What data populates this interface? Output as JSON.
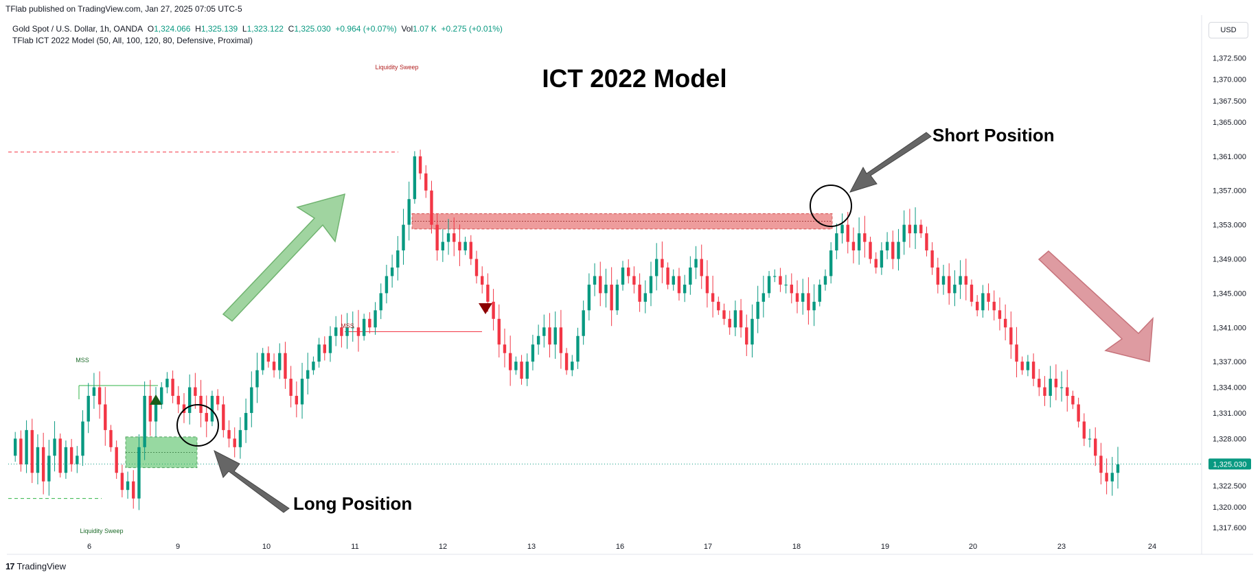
{
  "header": {
    "published": "TFlab published on TradingView.com, Jan 27, 2025 07:05 UTC-5"
  },
  "legend": {
    "symbol": "Gold Spot / U.S. Dollar, 1h, OANDA",
    "o_label": "O",
    "o_value": "1,324.066",
    "h_label": "H",
    "h_value": "1,325.139",
    "l_label": "L",
    "l_value": "1,323.122",
    "c_label": "C",
    "c_value": "1,325.030",
    "change": "+0.964 (+0.07%)",
    "vol_label": "Vol",
    "vol_value": "1.07 K",
    "vol_change": "+0.275 (+0.01%)",
    "indicator": "TFlab ICT 2022 Model (50, All, 100, 120, 80, Defensive, Proximal)"
  },
  "currency": "USD",
  "footer": {
    "brand": "TradingView",
    "logo": "17"
  },
  "colors": {
    "up": "#089981",
    "down": "#f23645",
    "bull_zone": "#2fb344",
    "bear_zone": "#e04a4a"
  },
  "chart_data": {
    "type": "candlestick",
    "title": "ICT 2022 Model",
    "x_ticks": [
      "6",
      "9",
      "10",
      "11",
      "12",
      "13",
      "16",
      "17",
      "18",
      "19",
      "20",
      "23",
      "24"
    ],
    "y_ticks": [
      "1,372.500",
      "1,370.000",
      "1,367.500",
      "1,365.000",
      "1,361.000",
      "1,357.000",
      "1,353.000",
      "1,349.000",
      "1,345.000",
      "1,341.000",
      "1,337.000",
      "1,334.000",
      "1,331.000",
      "1,328.000",
      "1,325.030",
      "1,322.500",
      "1,320.000",
      "1,317.600"
    ],
    "last_price": "1,325.030",
    "annotations": {
      "liquidity_sweep_top": "Liquidity Sweep",
      "liquidity_sweep_bottom": "Liquidity Sweep",
      "mss_left": "MSS",
      "mss_right": "MSS",
      "short_position": "Short Position",
      "long_position": "Long Position"
    },
    "levels": {
      "sweep_high": 1361.5,
      "sweep_low": 1321.0,
      "mss_bull": 1334.2,
      "mss_bear": 1340.5,
      "bear_zone": [
        1352.5,
        1354.3
      ],
      "bull_zone": [
        1324.6,
        1328.2
      ]
    },
    "path": [
      1326,
      1328,
      1325,
      1329,
      1324,
      1327,
      1323,
      1326,
      1328,
      1324,
      1327,
      1325,
      1326,
      1330,
      1333,
      1334,
      1332,
      1329,
      1327,
      1324,
      1322,
      1323,
      1321,
      1327,
      1333,
      1330,
      1332,
      1334,
      1335,
      1333,
      1332,
      1331,
      1334,
      1333,
      1331,
      1330,
      1333,
      1332,
      1329,
      1328,
      1327,
      1329,
      1331,
      1334,
      1336,
      1338,
      1337,
      1336,
      1338,
      1335,
      1333,
      1332,
      1335,
      1336,
      1337,
      1339,
      1338,
      1340,
      1341,
      1340,
      1341,
      1341,
      1340,
      1342,
      1341,
      1343,
      1345,
      1347,
      1348,
      1350,
      1353,
      1356,
      1361,
      1359,
      1357,
      1353,
      1350,
      1351,
      1352,
      1351,
      1350,
      1351,
      1349,
      1347,
      1346,
      1344,
      1342,
      1339,
      1338,
      1336,
      1337,
      1335,
      1337,
      1339,
      1340,
      1341,
      1339,
      1341,
      1338,
      1336,
      1337,
      1340,
      1343,
      1346,
      1347,
      1345,
      1346,
      1343,
      1346,
      1348,
      1347,
      1346,
      1344,
      1345,
      1347,
      1349,
      1348,
      1346,
      1347,
      1345,
      1346,
      1348,
      1349,
      1347,
      1345,
      1344,
      1343,
      1342,
      1341,
      1343,
      1341,
      1339,
      1342,
      1344,
      1345,
      1347,
      1347,
      1346,
      1346,
      1345,
      1344,
      1345,
      1343,
      1344,
      1346,
      1347,
      1350,
      1352,
      1353,
      1351,
      1350,
      1352,
      1351,
      1349,
      1348,
      1350,
      1351,
      1349,
      1351,
      1353,
      1352,
      1353,
      1352,
      1350,
      1348,
      1346,
      1347,
      1345,
      1346,
      1347,
      1346,
      1344,
      1343,
      1345,
      1344,
      1343,
      1342,
      1341,
      1339,
      1337,
      1336,
      1337,
      1335,
      1334,
      1333,
      1335,
      1334,
      1334,
      1333,
      1332,
      1330,
      1328,
      1328,
      1326,
      1324,
      1323,
      1324,
      1325
    ]
  }
}
